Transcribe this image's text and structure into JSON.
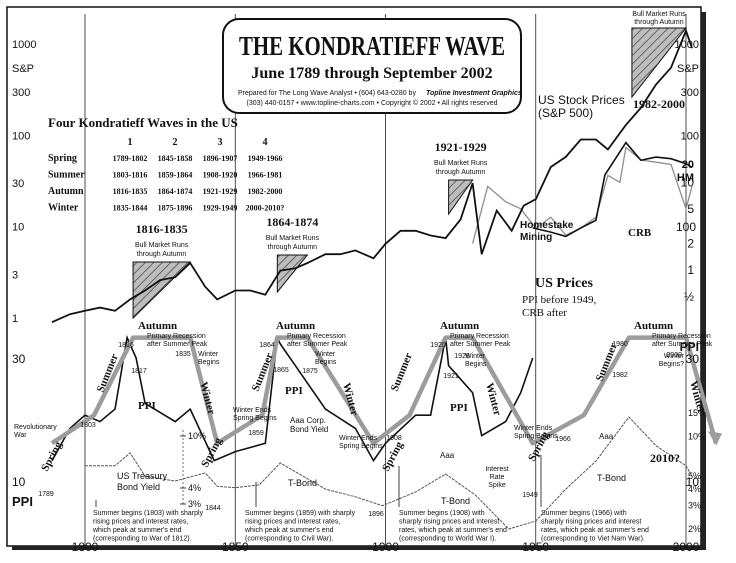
{
  "chart_data": {
    "type": "line",
    "title": "THE KONDRATIEFF WAVE",
    "subtitle": "June 1789 through September 2002",
    "credit_line1": "Prepared for The Long Wave Analyst • (604) 643-0280 by",
    "credit_brand": "Topline Investment Graphics",
    "credit_line2": "(303) 440-0157 • www.topline-charts.com • Copyright © 2002 • All rights reserved",
    "x_ticks": [
      "1800",
      "1850",
      "1900",
      "1950",
      "2000"
    ],
    "x_range": [
      1789,
      2002
    ],
    "sp_axis": {
      "label": "S&P",
      "ticks": [
        "1000",
        "300",
        "100",
        "30",
        "10",
        "3",
        "1"
      ],
      "tick_values": [
        1000,
        300,
        100,
        30,
        10,
        3,
        1
      ],
      "scale": "log"
    },
    "ppi_axis": {
      "label": "PPI",
      "ticks": [
        "30",
        "10"
      ],
      "tick_values": [
        30,
        10
      ],
      "scale": "log"
    },
    "hm_axis": {
      "label": "HM",
      "ticks": [
        "20",
        "10",
        "5",
        "2",
        "1",
        "½"
      ],
      "tick_values": [
        20,
        10,
        5,
        2,
        1,
        0.5
      ],
      "scale": "log"
    },
    "crb_axis_tick": "100",
    "yield_axis": {
      "ticks": [
        "15%",
        "10%",
        "5%",
        "4%",
        "3%",
        "2%"
      ],
      "tick_values": [
        15,
        10,
        5,
        4,
        3,
        2
      ],
      "scale": "log"
    },
    "yield_1850_ticks": [
      "10%",
      "4%",
      "3%"
    ],
    "table": {
      "title": "Four Kondratieff Waves in the US",
      "columns": [
        "1",
        "2",
        "3",
        "4"
      ],
      "rows": [
        {
          "season": "Spring",
          "values": [
            "1789-1802",
            "1845-1858",
            "1896-1907",
            "1949-1966"
          ]
        },
        {
          "season": "Summer",
          "values": [
            "1803-1816",
            "1859-1864",
            "1908-1920",
            "1966-1981"
          ]
        },
        {
          "season": "Autumn",
          "values": [
            "1816-1835",
            "1864-1874",
            "1921-1929",
            "1982-2000"
          ]
        },
        {
          "season": "Winter",
          "values": [
            "1835-1844",
            "1875-1896",
            "1929-1949",
            "2000-2010?"
          ]
        }
      ]
    },
    "bull_markets": [
      {
        "years": "1816-1835",
        "label1": "Bull Market Runs",
        "label2": "through Autumn",
        "x0": 1816,
        "x1": 1835
      },
      {
        "years": "1864-1874",
        "label1": "Bull Market Runs",
        "label2": "through Autumn",
        "x0": 1864,
        "x1": 1874
      },
      {
        "years": "1921-1929",
        "label1": "Bull Market Runs",
        "label2": "through Autumn",
        "x0": 1921,
        "x1": 1929
      },
      {
        "years": "1982-2000",
        "label1": "Bull Market Runs",
        "label2": "through Autumn",
        "x0": 1982,
        "x1": 2000
      }
    ],
    "series_labels": {
      "stock": [
        "US Stock Prices",
        "(S&P 500)"
      ],
      "homestake": [
        "Homestake",
        "Mining"
      ],
      "us_prices": "US Prices",
      "us_prices_sub": [
        "PPI before 1949,",
        "CRB after"
      ],
      "crb": "CRB",
      "ppi": "PPI",
      "treasury": [
        "US Treasury",
        "Bond Yield"
      ],
      "aaa_corp": [
        "Aaa Corp.",
        "Bond Yield"
      ],
      "tbond": "T-Bond",
      "aaa": "Aaa",
      "revolutionary_war": [
        "Revolutionary",
        "War"
      ],
      "interest_rate_spike": [
        "Interest",
        "Rate",
        "Spike"
      ]
    },
    "seasons": {
      "spring": "Spring",
      "summer": "Summer",
      "autumn": "Autumn",
      "winter": "Winter"
    },
    "wave_points": [
      {
        "x": 1789,
        "y": 14
      },
      {
        "x": 1803,
        "y": 18
      },
      {
        "x": 1816,
        "y": 36
      },
      {
        "x": 1835,
        "y": 36
      },
      {
        "x": 1844,
        "y": 14
      },
      {
        "x": 1859,
        "y": 18
      },
      {
        "x": 1864,
        "y": 36
      },
      {
        "x": 1874,
        "y": 36
      },
      {
        "x": 1896,
        "y": 14
      },
      {
        "x": 1908,
        "y": 18
      },
      {
        "x": 1920,
        "y": 36
      },
      {
        "x": 1929,
        "y": 36
      },
      {
        "x": 1949,
        "y": 14
      },
      {
        "x": 1966,
        "y": 18
      },
      {
        "x": 1981,
        "y": 36
      },
      {
        "x": 2000,
        "y": 36
      },
      {
        "x": 2010,
        "y": 14
      }
    ],
    "wave_labels": {
      "recession": [
        "Primary Recession",
        "after Summer Peak"
      ],
      "winter_begins": [
        "Winter",
        "Begins"
      ],
      "winter_begins_q": [
        "Winter",
        "Begins?"
      ],
      "winter_ends": [
        "Winter Ends",
        "Spring Begins"
      ],
      "year_2010": "2010?"
    },
    "years_marked": [
      "1789",
      "1803",
      "1816",
      "1817",
      "1835",
      "1844",
      "1859",
      "1864",
      "1865",
      "1875",
      "1896",
      "1908",
      "1920",
      "1921",
      "1929",
      "1949",
      "1966",
      "1980",
      "1982",
      "2000"
    ],
    "summer_notes": [
      [
        "Summer begins (1803) with sharply",
        "rising prices and interest rates,",
        "which peak at summer's end",
        "(corresponding to War of 1812)."
      ],
      [
        "Summer begins (1859) with sharply",
        "rising prices and interest rates,",
        "which peak at summer's end",
        "(corresponding to Civil War)."
      ],
      [
        "Summer begins (1908) with",
        "sharply rising prices and interest",
        "rates, which peak at summer's end",
        "(corresponding to World War I)."
      ],
      [
        "Summer begins (1966) with",
        "sharply rising prices and interest",
        "rates, which peak at summer's end",
        "(corresponding to Viet Nam War)."
      ]
    ],
    "sp500": {
      "x": [
        1789,
        1795,
        1800,
        1805,
        1810,
        1815,
        1820,
        1825,
        1830,
        1835,
        1840,
        1844,
        1850,
        1855,
        1860,
        1865,
        1870,
        1874,
        1880,
        1885,
        1890,
        1896,
        1900,
        1905,
        1910,
        1915,
        1920,
        1925,
        1929,
        1932,
        1937,
        1942,
        1946,
        1950,
        1955,
        1960,
        1965,
        1970,
        1974,
        1980,
        1985,
        1990,
        1995,
        2000,
        2002
      ],
      "y": [
        0.9,
        1.1,
        1.2,
        1.3,
        1.2,
        1.6,
        2.0,
        2.6,
        2.8,
        4.0,
        2.2,
        1.6,
        2.0,
        2.0,
        1.8,
        3.3,
        3.5,
        4.0,
        5.0,
        5.0,
        5.5,
        4.5,
        6.5,
        9.0,
        9.0,
        8.0,
        7.5,
        12.0,
        30.0,
        5.0,
        15.0,
        9.0,
        17.0,
        20.0,
        45.0,
        58.0,
        90.0,
        90.0,
        70.0,
        130.0,
        200.0,
        360.0,
        550.0,
        1400.0,
        900.0
      ]
    },
    "ppi": {
      "x": [
        1789,
        1795,
        1800,
        1805,
        1810,
        1814,
        1817,
        1820,
        1830,
        1835,
        1843,
        1850,
        1860,
        1864,
        1865,
        1870,
        1880,
        1890,
        1896,
        1900,
        1910,
        1915,
        1920,
        1921,
        1929,
        1932,
        1940,
        1945,
        1949
      ],
      "y": [
        12,
        16,
        18,
        17,
        19,
        36,
        30,
        20,
        17,
        19,
        12,
        13,
        14,
        36,
        34,
        28,
        19,
        16,
        12,
        14,
        18,
        18,
        36,
        28,
        22,
        15,
        17,
        22,
        30
      ]
    },
    "crb": {
      "x": [
        1949,
        1955,
        1960,
        1965,
        1970,
        1973,
        1980,
        1985,
        1990,
        1995,
        2000,
        2002
      ],
      "y": [
        95,
        90,
        85,
        95,
        105,
        190,
        290,
        230,
        240,
        235,
        220,
        210
      ]
    },
    "homestake": {
      "x": [
        1929,
        1934,
        1940,
        1945,
        1950,
        1955,
        1960,
        1965,
        1970,
        1974,
        1978,
        1980,
        1985,
        1990,
        1995,
        2000,
        2002
      ],
      "y": [
        2.0,
        9.0,
        6.0,
        5.0,
        3.0,
        4.0,
        2.5,
        3.0,
        4.0,
        12.0,
        10.0,
        25.0,
        18.0,
        17.0,
        16.0,
        5.0,
        9.0
      ]
    },
    "treasury_yield": {
      "x": [
        1800,
        1810,
        1815,
        1820,
        1830,
        1840,
        1844,
        1850,
        1858,
        1865,
        1870,
        1880,
        1890,
        1899,
        1910,
        1920,
        1930,
        1941,
        1950,
        1960,
        1970,
        1981,
        1990,
        2000,
        2002
      ],
      "y": [
        6.0,
        6.0,
        7.5,
        5.0,
        4.6,
        5.3,
        4.2,
        4.1,
        4.3,
        6.3,
        5.4,
        4.0,
        3.5,
        3.0,
        3.8,
        5.2,
        3.6,
        2.0,
        2.3,
        4.0,
        6.5,
        14.0,
        8.5,
        6.0,
        5.0
      ]
    }
  }
}
